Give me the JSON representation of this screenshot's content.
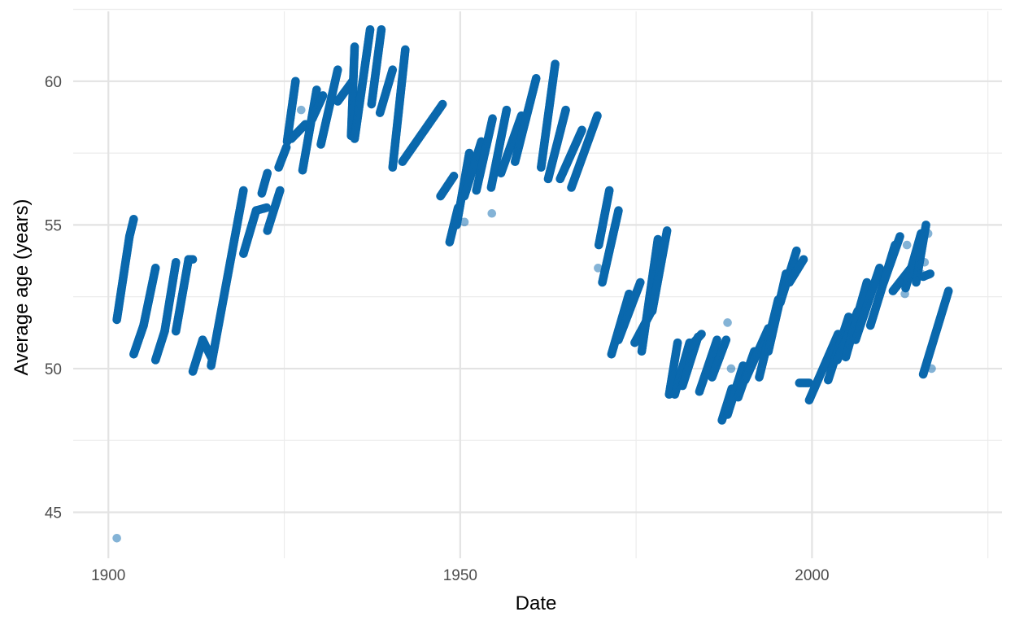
{
  "chart_data": {
    "type": "scatter",
    "title": "",
    "xlabel": "Date",
    "ylabel": "Average age (years)",
    "x_unit": "year",
    "xlim": [
      1895,
      2027
    ],
    "ylim": [
      43.4,
      62.6
    ],
    "x_ticks": [
      1900,
      1950,
      2000
    ],
    "y_ticks": [
      45,
      50,
      55,
      60
    ],
    "grid": true,
    "legend": "none",
    "color": "#0a68ad",
    "segments": [
      [
        1901.2,
        51.7,
        1903.0,
        54.6
      ],
      [
        1903.0,
        54.6,
        1903.6,
        55.2
      ],
      [
        1903.6,
        50.5,
        1905.0,
        51.5
      ],
      [
        1905.0,
        51.5,
        1906.7,
        53.5
      ],
      [
        1906.7,
        50.3,
        1908.0,
        51.3
      ],
      [
        1908.0,
        51.3,
        1909.6,
        53.7
      ],
      [
        1909.6,
        51.3,
        1911.4,
        53.8
      ],
      [
        1911.4,
        53.8,
        1912.0,
        53.8
      ],
      [
        1912.0,
        49.9,
        1913.4,
        51.0
      ],
      [
        1913.4,
        51.0,
        1914.6,
        50.4
      ],
      [
        1914.6,
        50.1,
        1919.2,
        56.2
      ],
      [
        1919.2,
        54.0,
        1921.0,
        55.5
      ],
      [
        1921.0,
        55.5,
        1922.5,
        55.6
      ],
      [
        1921.8,
        56.1,
        1922.6,
        56.8
      ],
      [
        1922.6,
        54.8,
        1924.4,
        56.2
      ],
      [
        1924.2,
        57.0,
        1925.3,
        57.7
      ],
      [
        1925.4,
        57.9,
        1926.6,
        60.0
      ],
      [
        1926.0,
        58.0,
        1928.0,
        58.5
      ],
      [
        1927.6,
        56.9,
        1929.6,
        59.7
      ],
      [
        1929.0,
        58.7,
        1930.5,
        59.5
      ],
      [
        1930.2,
        57.8,
        1932.6,
        60.4
      ],
      [
        1932.6,
        59.3,
        1934.7,
        60.0
      ],
      [
        1934.5,
        58.1,
        1935.0,
        61.2
      ],
      [
        1935.0,
        58.0,
        1937.2,
        61.8
      ],
      [
        1937.4,
        59.2,
        1938.8,
        61.8
      ],
      [
        1938.6,
        58.9,
        1940.4,
        60.4
      ],
      [
        1940.4,
        57.0,
        1942.2,
        61.1
      ],
      [
        1941.8,
        57.2,
        1947.5,
        59.2
      ],
      [
        1947.2,
        56.0,
        1949.1,
        56.7
      ],
      [
        1948.5,
        54.4,
        1949.7,
        55.6
      ],
      [
        1949.5,
        55.0,
        1951.3,
        57.5
      ],
      [
        1950.6,
        56.0,
        1953.0,
        57.9
      ],
      [
        1952.3,
        56.2,
        1954.6,
        58.7
      ],
      [
        1954.4,
        56.3,
        1956.6,
        59.0
      ],
      [
        1955.8,
        56.8,
        1958.7,
        58.8
      ],
      [
        1957.8,
        57.2,
        1960.8,
        60.1
      ],
      [
        1961.5,
        57.0,
        1963.5,
        60.6
      ],
      [
        1962.5,
        56.6,
        1965.0,
        59.0
      ],
      [
        1964.2,
        56.6,
        1967.3,
        58.3
      ],
      [
        1965.8,
        56.3,
        1969.5,
        58.8
      ],
      [
        1969.7,
        54.3,
        1971.2,
        56.2
      ],
      [
        1970.2,
        53.0,
        1972.5,
        55.5
      ],
      [
        1971.5,
        50.5,
        1974.0,
        52.6
      ],
      [
        1972.5,
        51.0,
        1975.6,
        53.0
      ],
      [
        1974.8,
        50.9,
        1977.2,
        52.0
      ],
      [
        1975.8,
        50.6,
        1978.1,
        54.5
      ],
      [
        1977.3,
        52.0,
        1979.4,
        54.8
      ],
      [
        1979.7,
        49.1,
        1980.9,
        50.9
      ],
      [
        1980.5,
        49.1,
        1982.6,
        50.9
      ],
      [
        1981.6,
        49.4,
        1983.8,
        51.1
      ],
      [
        1982.4,
        50.7,
        1984.3,
        51.2
      ],
      [
        1984.0,
        49.2,
        1986.5,
        51.0
      ],
      [
        1985.8,
        49.7,
        1987.8,
        51.0
      ],
      [
        1987.2,
        48.2,
        1988.6,
        49.3
      ],
      [
        1988.0,
        48.4,
        1990.2,
        50.1
      ],
      [
        1989.5,
        49.0,
        1991.8,
        50.6
      ],
      [
        1990.5,
        49.6,
        1993.8,
        51.4
      ],
      [
        1992.5,
        49.7,
        1995.2,
        52.4
      ],
      [
        1993.8,
        50.6,
        1996.3,
        53.3
      ],
      [
        1995.5,
        52.3,
        1997.8,
        54.1
      ],
      [
        1996.8,
        53.0,
        1998.8,
        53.8
      ],
      [
        1998.2,
        49.5,
        1999.6,
        49.5
      ],
      [
        1999.6,
        48.9,
        2003.7,
        51.2
      ],
      [
        2002.3,
        49.6,
        2005.2,
        51.8
      ],
      [
        2003.6,
        50.3,
        2006.5,
        52.0
      ],
      [
        2004.8,
        50.4,
        2007.8,
        53.0
      ],
      [
        2006.2,
        51.0,
        2009.6,
        53.5
      ],
      [
        2008.3,
        51.5,
        2011.8,
        54.3
      ],
      [
        2010.2,
        53.0,
        2012.5,
        54.6
      ],
      [
        2011.5,
        52.7,
        2014.4,
        53.6
      ],
      [
        2013.3,
        52.8,
        2015.5,
        54.7
      ],
      [
        2014.8,
        53.0,
        2016.2,
        55.0
      ],
      [
        2015.8,
        53.2,
        2016.8,
        53.3
      ],
      [
        2015.8,
        49.8,
        2019.4,
        52.7
      ]
    ],
    "faint_points": [
      [
        1901.2,
        44.1
      ],
      [
        1927.4,
        59.0
      ],
      [
        1950.6,
        55.1
      ],
      [
        1954.5,
        55.4
      ],
      [
        1969.6,
        53.5
      ],
      [
        1988.0,
        51.6
      ],
      [
        1988.5,
        50.0
      ],
      [
        1995.0,
        52.0
      ],
      [
        2013.2,
        52.6
      ],
      [
        2015.5,
        53.3
      ],
      [
        2016.0,
        53.7
      ],
      [
        2016.5,
        54.7
      ],
      [
        2017.0,
        50.0
      ],
      [
        2012.5,
        53.0
      ],
      [
        2013.5,
        54.3
      ]
    ]
  }
}
